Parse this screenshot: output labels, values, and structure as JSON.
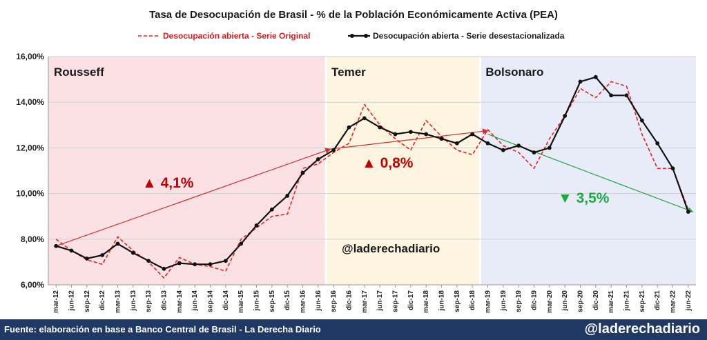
{
  "chart_data": {
    "type": "line",
    "title": "Tasa de Desocupación de Brasil - % de la Población Económicamente Activa (PEA)",
    "ylim": [
      6,
      16
    ],
    "yticks": [
      "6,00%",
      "8,00%",
      "10,00%",
      "12,00%",
      "14,00%",
      "16,00%"
    ],
    "x_labels": [
      "mar-12",
      "jun-12",
      "sep-12",
      "dic-12",
      "mar-13",
      "jun-13",
      "sep-13",
      "dic-13",
      "mar-14",
      "jun-14",
      "sep-14",
      "dic-14",
      "mar-15",
      "jun-15",
      "sep-15",
      "dic-15",
      "mar-16",
      "jun-16",
      "sep-16",
      "dic-16",
      "mar-17",
      "jun-17",
      "sep-17",
      "dic-17",
      "mar-18",
      "jun-18",
      "sep-18",
      "dic-18",
      "mar-19",
      "jun-19",
      "sep-19",
      "dic-19",
      "mar-20",
      "jun-20",
      "sep-20",
      "dic-20",
      "mar-21",
      "jun-21",
      "sep-21",
      "dic-21",
      "mar-22",
      "jun-22"
    ],
    "series": [
      {
        "name": "Desocupación abierta - Serie Original",
        "color": "#ee1c1c",
        "style": "dashed",
        "values": [
          8.0,
          7.5,
          7.1,
          6.9,
          8.1,
          7.5,
          7.0,
          6.3,
          7.2,
          6.9,
          6.8,
          6.6,
          8.0,
          8.5,
          9.0,
          9.1,
          11.1,
          11.3,
          11.8,
          12.2,
          13.9,
          13.0,
          12.4,
          11.9,
          13.2,
          12.5,
          11.9,
          11.7,
          12.8,
          12.1,
          11.8,
          11.1,
          12.4,
          13.4,
          14.6,
          14.2,
          14.9,
          14.7,
          12.6,
          11.1,
          11.1,
          9.3
        ]
      },
      {
        "name": "Desocupación abierta - Serie desestacionalizada",
        "color": "#111111",
        "style": "solid-markers",
        "values": [
          7.7,
          7.5,
          7.15,
          7.3,
          7.8,
          7.4,
          7.05,
          6.7,
          6.95,
          6.9,
          6.9,
          7.05,
          7.8,
          8.6,
          9.3,
          9.9,
          10.9,
          11.5,
          11.9,
          12.9,
          13.3,
          12.9,
          12.6,
          12.7,
          12.6,
          12.4,
          12.2,
          12.6,
          12.2,
          11.9,
          12.1,
          11.8,
          12.0,
          13.4,
          14.9,
          15.1,
          14.3,
          14.3,
          13.2,
          12.2,
          11.1,
          9.2
        ]
      }
    ],
    "periods": [
      {
        "label": "Rousseff",
        "start": -0.5,
        "end": 17.5,
        "color": "#fce1e4"
      },
      {
        "label": "Temer",
        "start": 17.5,
        "end": 27.5,
        "color": "#fdf5e0"
      },
      {
        "label": "Bolsonaro",
        "start": 27.5,
        "end": 41.5,
        "color": "#e8ecf8"
      }
    ],
    "annotations": [
      {
        "label": "▲ 4,1%",
        "color": "#c00000"
      },
      {
        "label": "▲ 0,8%",
        "color": "#c00000"
      },
      {
        "label": "▼ 3,5%",
        "color": "#1aab40"
      }
    ],
    "trend_colors": [
      "#d03030",
      "#d03030",
      "#27a745"
    ],
    "watermark": "@laderechadiario"
  },
  "footer": {
    "source": "Fuente: elaboración en base a Banco Central de Brasil - La Derecha Diario",
    "handle": "@laderechadiario"
  }
}
